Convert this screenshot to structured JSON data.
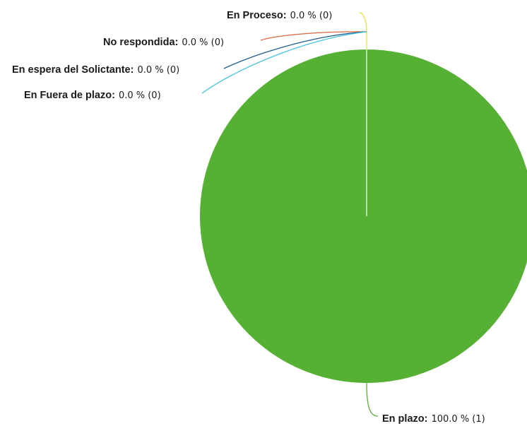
{
  "chart_data": {
    "type": "pie",
    "slices": [
      {
        "label": "En plazo",
        "percent": "100.0 %",
        "count": "(1)",
        "value": 1,
        "color": "#55b033"
      },
      {
        "label": "En Proceso",
        "percent": "0.0 %",
        "count": "(0)",
        "value": 0,
        "color": "#e8e03a"
      },
      {
        "label": "No respondida",
        "percent": "0.0 %",
        "count": "(0)",
        "value": 0,
        "color": "#e0673e"
      },
      {
        "label": "En espera del Solictante",
        "percent": "0.0 %",
        "count": "(0)",
        "value": 0,
        "color": "#1e5b8a"
      },
      {
        "label": "En Fuera de plazo",
        "percent": "0.0 %",
        "count": "(0)",
        "value": 0,
        "color": "#3fc3e0"
      }
    ]
  }
}
